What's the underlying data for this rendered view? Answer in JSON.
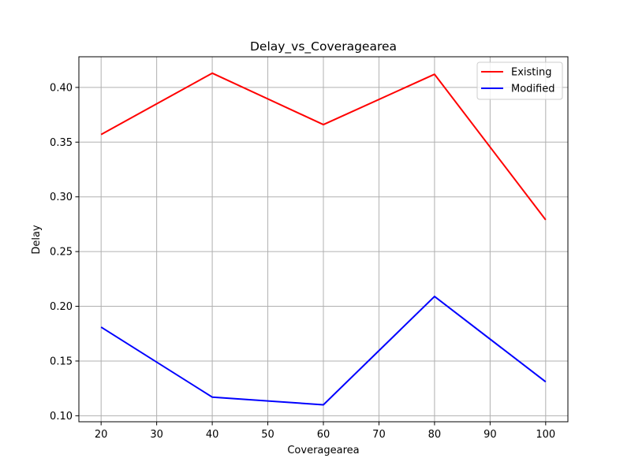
{
  "chart_data": {
    "type": "line",
    "title": "Delay_vs_Coveragearea",
    "xlabel": "Coveragearea",
    "ylabel": "Delay",
    "x": [
      20,
      40,
      60,
      80,
      100
    ],
    "xlim": [
      16,
      104
    ],
    "ylim": [
      0.0945,
      0.428
    ],
    "xticks": [
      20,
      30,
      40,
      50,
      60,
      70,
      80,
      90,
      100
    ],
    "yticks": [
      0.1,
      0.15,
      0.2,
      0.25,
      0.3,
      0.35,
      0.4
    ],
    "ytick_labels": [
      "0.10",
      "0.15",
      "0.20",
      "0.25",
      "0.30",
      "0.35",
      "0.40"
    ],
    "grid": true,
    "legend_position": "top-right",
    "series": [
      {
        "name": "Existing",
        "color": "#ff0000",
        "values": [
          0.357,
          0.413,
          0.366,
          0.412,
          0.279
        ]
      },
      {
        "name": "Modified",
        "color": "#0000ff",
        "values": [
          0.181,
          0.117,
          0.11,
          0.209,
          0.131
        ]
      }
    ]
  }
}
